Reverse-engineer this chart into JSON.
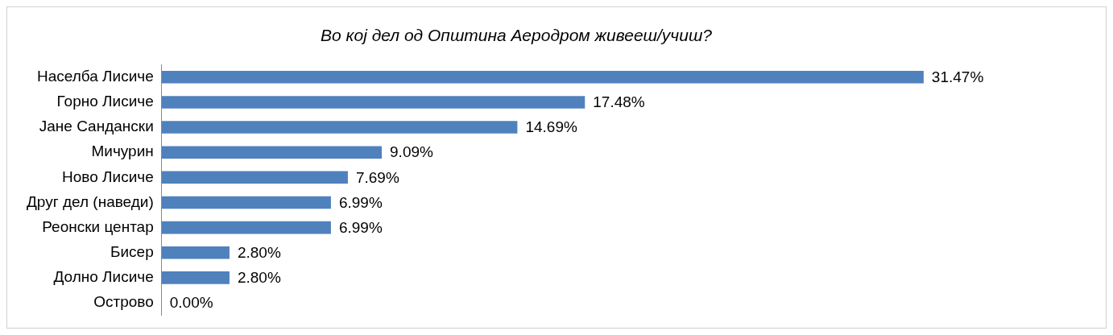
{
  "chart_data": {
    "type": "bar",
    "orientation": "horizontal",
    "title": "Во кој дел од Општина Аеродром живееш/учиш?",
    "categories": [
      "Населба Лисиче",
      "Горно Лисиче",
      "Јане Сандански",
      "Мичурин",
      "Ново Лисиче",
      "Друг дел (наведи)",
      "Реонски центар",
      "Бисер",
      "Долно Лисиче",
      "Острово"
    ],
    "values": [
      31.47,
      17.48,
      14.69,
      9.09,
      7.69,
      6.99,
      6.99,
      2.8,
      2.8,
      0.0
    ],
    "value_labels": [
      "31.47%",
      "17.48%",
      "14.69%",
      "9.09%",
      "7.69%",
      "6.99%",
      "6.99%",
      "2.80%",
      "2.80%",
      "0.00%"
    ],
    "color": "#4f81bd",
    "legend": false
  }
}
